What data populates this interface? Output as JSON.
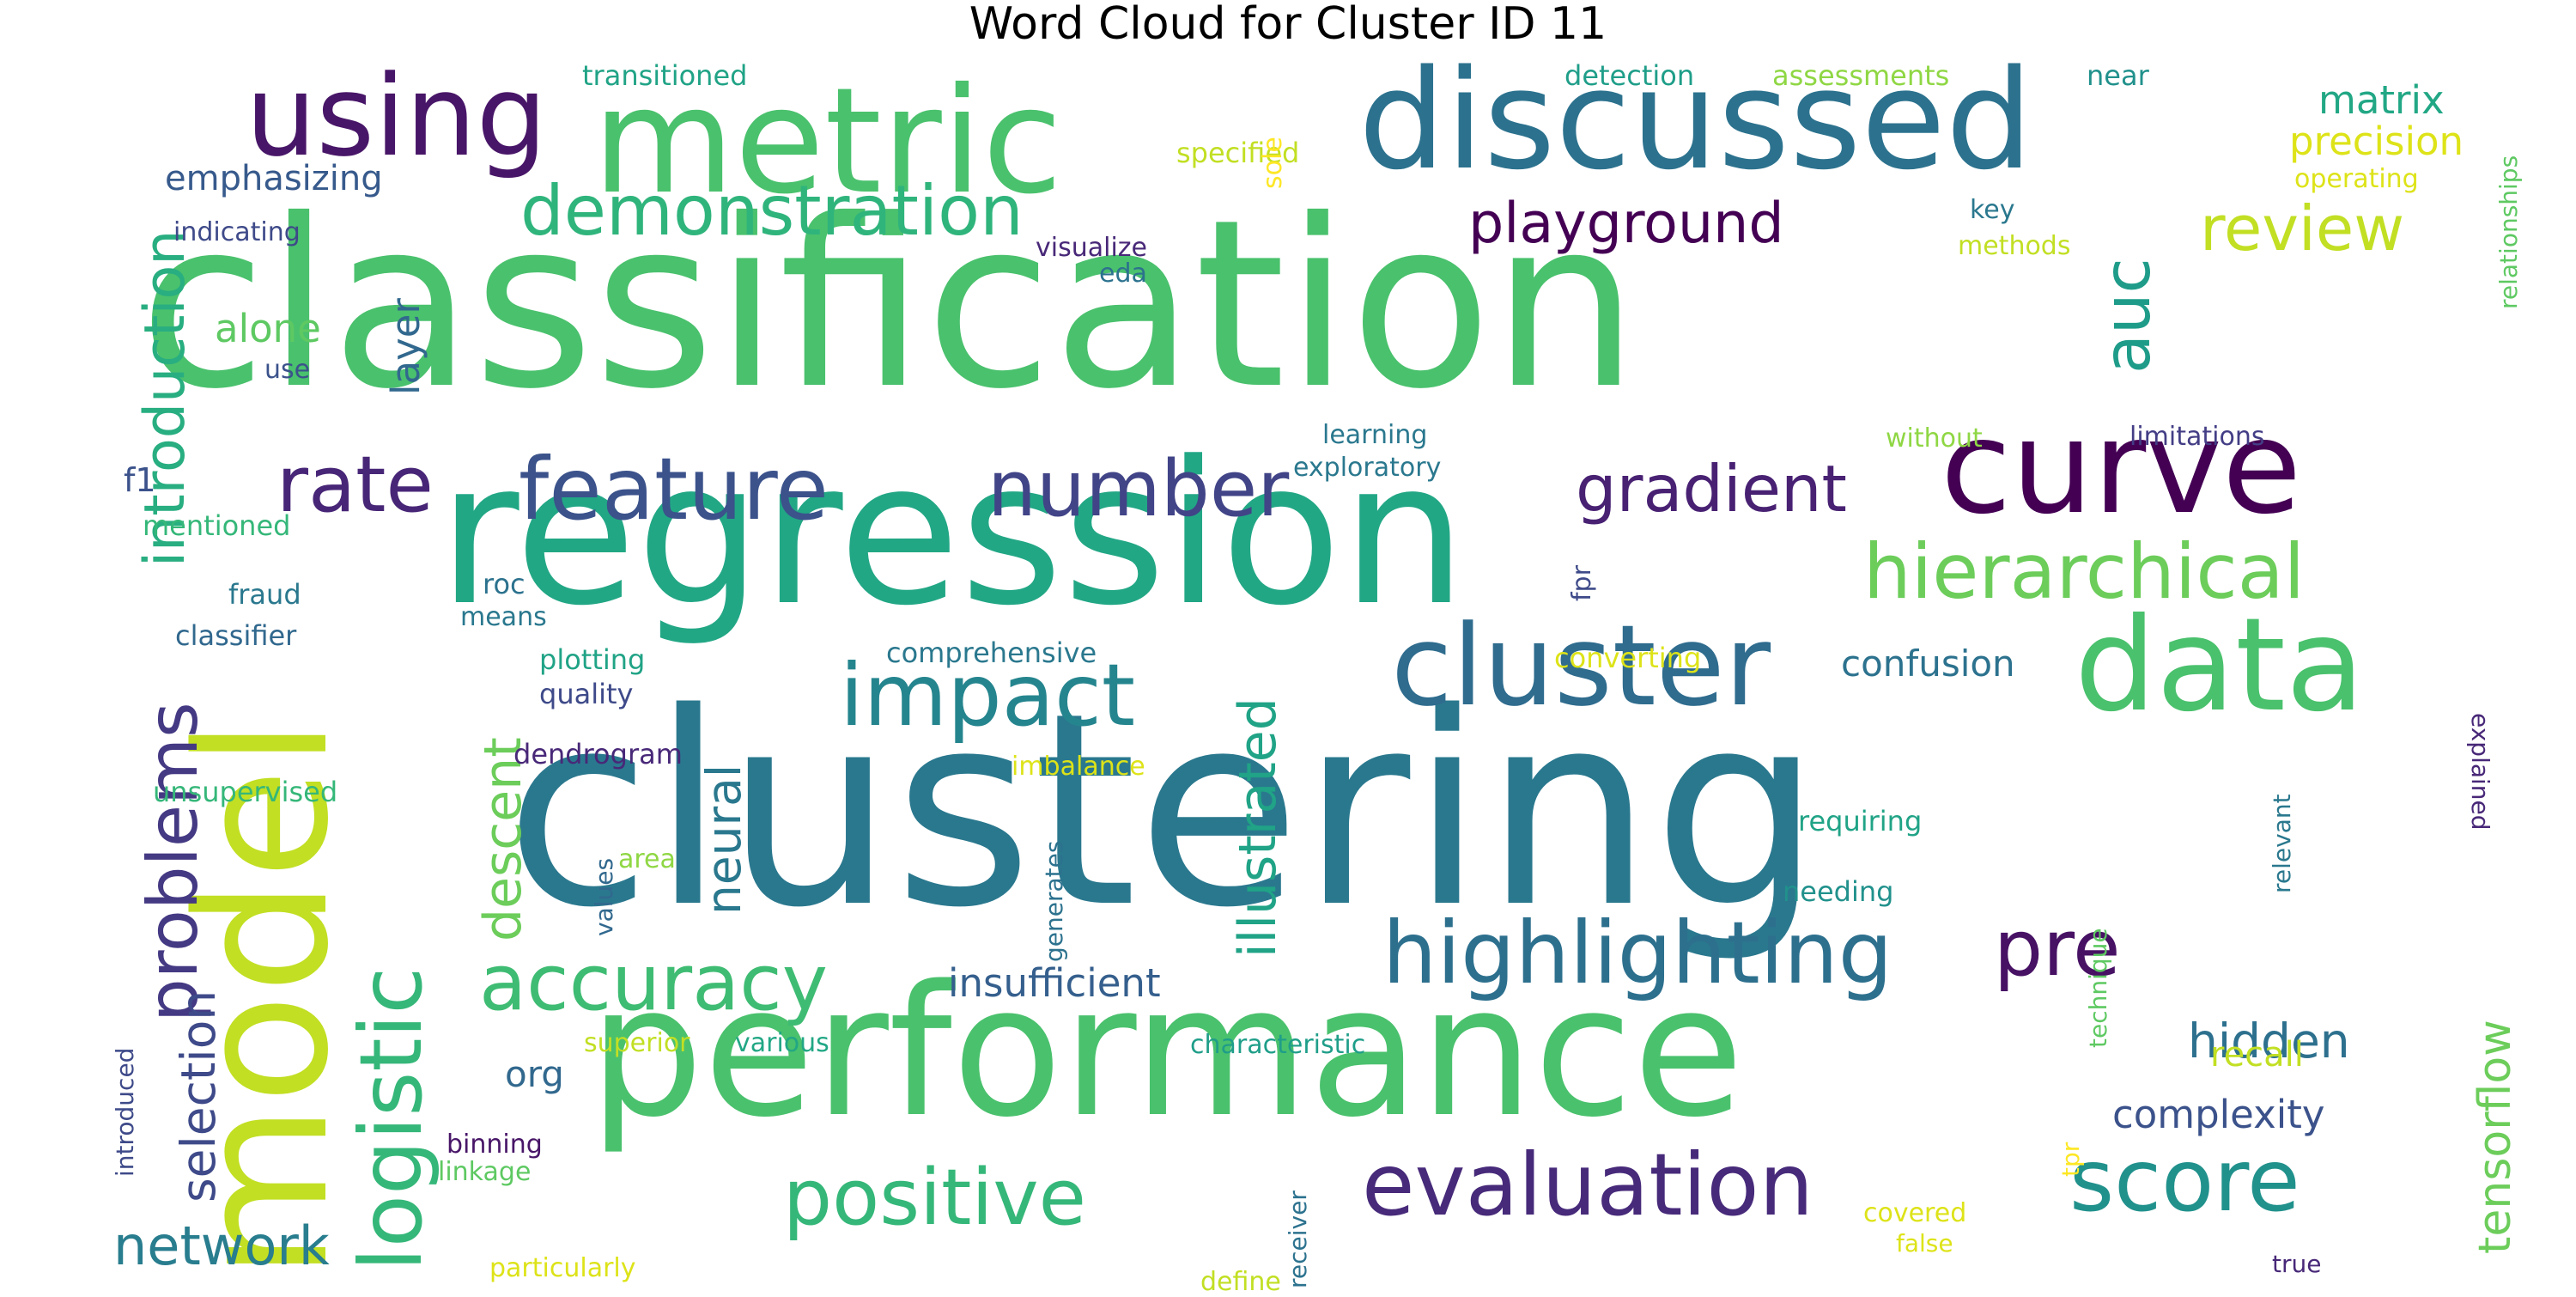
{
  "title": "Word Cloud for Cluster ID 11",
  "palette": {
    "dark_purple": "#440154",
    "purple": "#482878",
    "indigo": "#3e4a89",
    "blue": "#31688e",
    "teal": "#26828e",
    "cyan": "#1f9e89",
    "sea": "#35b779",
    "green": "#6ece58",
    "lime": "#b5de2b",
    "yellow": "#fde725"
  },
  "words": [
    {
      "text": "clustering",
      "color": "#2a788e"
    },
    {
      "text": "classification",
      "color": "#4ac16d"
    },
    {
      "text": "regression",
      "color": "#22a785"
    },
    {
      "text": "performance",
      "color": "#4ac16d"
    },
    {
      "text": "model",
      "color": "#c2df23"
    },
    {
      "text": "discussed",
      "color": "#2c728e"
    },
    {
      "text": "metric",
      "color": "#4ac16d"
    },
    {
      "text": "curve",
      "color": "#440154"
    },
    {
      "text": "data",
      "color": "#4ac16d"
    },
    {
      "text": "using",
      "color": "#481668"
    },
    {
      "text": "cluster",
      "color": "#2f6c8e"
    },
    {
      "text": "highlighting",
      "color": "#2d708e"
    },
    {
      "text": "logistic",
      "color": "#35b779"
    },
    {
      "text": "evaluation",
      "color": "#472a7a"
    },
    {
      "text": "impact",
      "color": "#25858e"
    },
    {
      "text": "feature",
      "color": "#3b528b"
    },
    {
      "text": "rate",
      "color": "#482677"
    },
    {
      "text": "number",
      "color": "#414487"
    },
    {
      "text": "accuracy",
      "color": "#3fbc73"
    },
    {
      "text": "positive",
      "color": "#35b779"
    },
    {
      "text": "score",
      "color": "#21918c"
    },
    {
      "text": "hierarchical",
      "color": "#6ccd5a"
    },
    {
      "text": "problems",
      "color": "#443983"
    },
    {
      "text": "demonstration",
      "color": "#2fb47c"
    },
    {
      "text": "gradient",
      "color": "#482173"
    },
    {
      "text": "pre",
      "color": "#471164"
    },
    {
      "text": "introduction",
      "color": "#28ae80"
    },
    {
      "text": "playground",
      "color": "#440154"
    },
    {
      "text": "review",
      "color": "#c2df23"
    },
    {
      "text": "auc",
      "color": "#1e9c89"
    },
    {
      "text": "descent",
      "color": "#6ccd5a"
    },
    {
      "text": "illustrated",
      "color": "#20a386"
    },
    {
      "text": "tensorflow",
      "color": "#6ccd5a"
    },
    {
      "text": "network",
      "color": "#287d8e"
    },
    {
      "text": "selection",
      "color": "#3e4a89"
    },
    {
      "text": "neural",
      "color": "#2a788e"
    },
    {
      "text": "hidden",
      "color": "#2d708e"
    },
    {
      "text": "insufficient",
      "color": "#355f8d"
    },
    {
      "text": "complexity",
      "color": "#3b528b"
    },
    {
      "text": "layer",
      "color": "#31688e"
    },
    {
      "text": "alone",
      "color": "#5ec962"
    },
    {
      "text": "precision",
      "color": "#dde318"
    },
    {
      "text": "matrix",
      "color": "#22a785"
    },
    {
      "text": "emphasizing",
      "color": "#375a8c"
    },
    {
      "text": "confusion",
      "color": "#2c728e"
    },
    {
      "text": "org",
      "color": "#31688e"
    },
    {
      "text": "recall",
      "color": "#c2df23"
    },
    {
      "text": "f1",
      "color": "#3b528b"
    },
    {
      "text": "transitioned",
      "color": "#20a386"
    },
    {
      "text": "detection",
      "color": "#1f9e89"
    },
    {
      "text": "assessments",
      "color": "#8fd744"
    },
    {
      "text": "near",
      "color": "#21918c"
    },
    {
      "text": "specified",
      "color": "#c2df23"
    },
    {
      "text": "operating",
      "color": "#dde318"
    },
    {
      "text": "sole",
      "color": "#fde725"
    },
    {
      "text": "indicating",
      "color": "#3e4a89"
    },
    {
      "text": "visualize",
      "color": "#482878"
    },
    {
      "text": "eda",
      "color": "#2c728e"
    },
    {
      "text": "key",
      "color": "#2a788e"
    },
    {
      "text": "methods",
      "color": "#c2df23"
    },
    {
      "text": "use",
      "color": "#3b528b"
    },
    {
      "text": "learning",
      "color": "#2a788e"
    },
    {
      "text": "exploratory",
      "color": "#2a788e"
    },
    {
      "text": "without",
      "color": "#8fd744"
    },
    {
      "text": "limitations",
      "color": "#433e85"
    },
    {
      "text": "relationships",
      "color": "#5ec962"
    },
    {
      "text": "mentioned",
      "color": "#35b779"
    },
    {
      "text": "fraud",
      "color": "#2a788e"
    },
    {
      "text": "roc",
      "color": "#2c728e"
    },
    {
      "text": "means",
      "color": "#2a788e"
    },
    {
      "text": "classifier",
      "color": "#31688e"
    },
    {
      "text": "fpr",
      "color": "#3e4a89"
    },
    {
      "text": "comprehensive",
      "color": "#2a788e"
    },
    {
      "text": "plotting",
      "color": "#20a386"
    },
    {
      "text": "converting",
      "color": "#dde318"
    },
    {
      "text": "quality",
      "color": "#3e4a89"
    },
    {
      "text": "dendrogram",
      "color": "#482878"
    },
    {
      "text": "imbalance",
      "color": "#dde318"
    },
    {
      "text": "unsupervised",
      "color": "#35b779"
    },
    {
      "text": "requiring",
      "color": "#20a386"
    },
    {
      "text": "explained",
      "color": "#482878"
    },
    {
      "text": "relevant",
      "color": "#2a788e"
    },
    {
      "text": "area",
      "color": "#8fd744"
    },
    {
      "text": "values",
      "color": "#31688e"
    },
    {
      "text": "generates",
      "color": "#2c728e"
    },
    {
      "text": "needing",
      "color": "#21918c"
    },
    {
      "text": "technique",
      "color": "#5ec962"
    },
    {
      "text": "introduced",
      "color": "#3e4a89"
    },
    {
      "text": "superior",
      "color": "#c2df23"
    },
    {
      "text": "various",
      "color": "#22a785"
    },
    {
      "text": "characteristic",
      "color": "#1f9e89"
    },
    {
      "text": "binning",
      "color": "#481668"
    },
    {
      "text": "linkage",
      "color": "#5ec962"
    },
    {
      "text": "receiver",
      "color": "#2c728e"
    },
    {
      "text": "tpr",
      "color": "#fde725"
    },
    {
      "text": "covered",
      "color": "#dde318"
    },
    {
      "text": "false",
      "color": "#dde318"
    },
    {
      "text": "true",
      "color": "#482878"
    },
    {
      "text": "particularly",
      "color": "#dde318"
    },
    {
      "text": "define",
      "color": "#c2df23"
    }
  ]
}
